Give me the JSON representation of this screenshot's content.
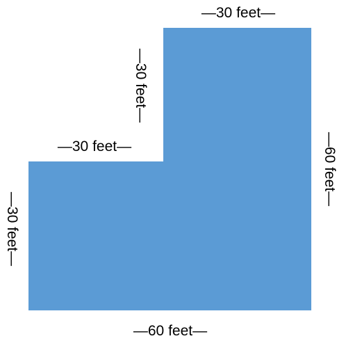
{
  "figure": {
    "shape_color": "#5b9bd5",
    "label_color": "#000000",
    "labels": {
      "top": "—30 feet—",
      "upper_left_vertical": "—30 feet—",
      "middle_horizontal": "—30 feet—",
      "right_vertical": "—60 feet—",
      "left_vertical": "—30 feet—",
      "bottom": "—60 feet—"
    }
  }
}
